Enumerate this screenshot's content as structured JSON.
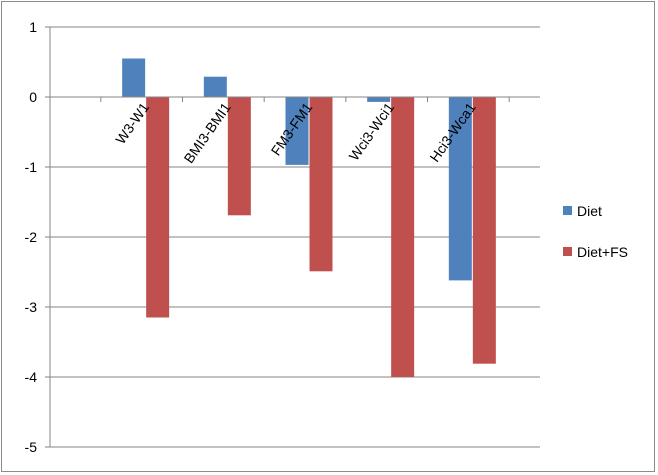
{
  "chart_data": {
    "type": "bar",
    "categories": [
      "W3-W1",
      "BMI3-BMI1",
      "FM3-FM1",
      "Wci3-Wci1",
      "Hci3-Wca1"
    ],
    "series": [
      {
        "name": "Diet",
        "values": [
          0.55,
          0.29,
          -0.97,
          -0.07,
          -2.62
        ],
        "color": "#4f81bd"
      },
      {
        "name": "Diet+FS",
        "values": [
          -3.15,
          -1.69,
          -2.49,
          -4.0,
          -3.81
        ],
        "color": "#c0504d"
      }
    ],
    "ylim": [
      -5,
      1
    ],
    "yticks": [
      1,
      0,
      -1,
      -2,
      -3,
      -4,
      -5
    ],
    "grid": true,
    "legend_position": "right",
    "title": "",
    "xlabel": "",
    "ylabel": ""
  }
}
